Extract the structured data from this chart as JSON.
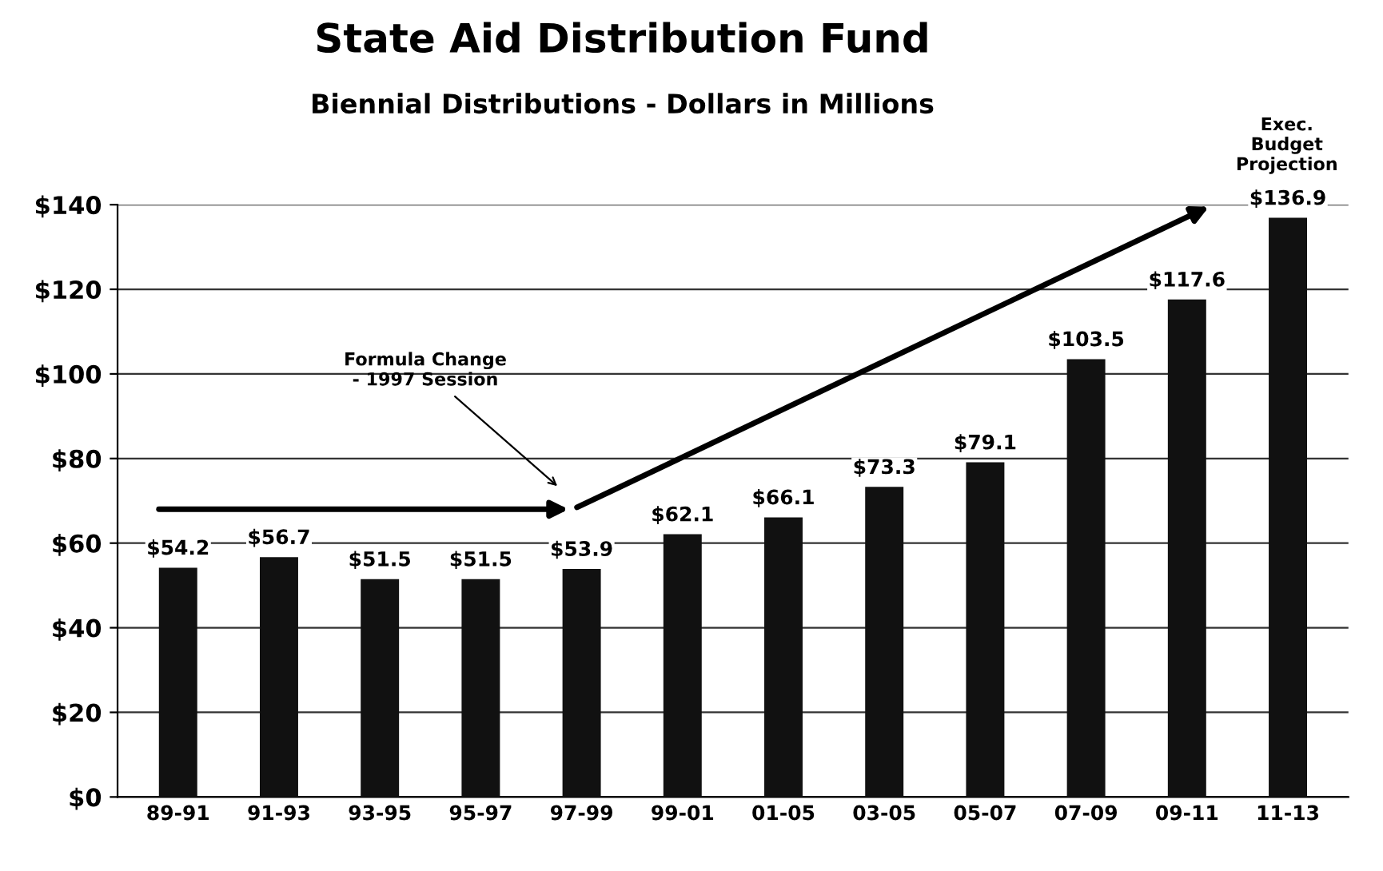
{
  "chart_data": {
    "type": "bar",
    "title": "State Aid Distribution Fund",
    "subtitle": "Biennial Distributions - Dollars in Millions",
    "categories": [
      "89-91",
      "91-93",
      "93-95",
      "95-97",
      "97-99",
      "99-01",
      "01-05",
      "03-05",
      "05-07",
      "07-09",
      "09-11",
      "11-13"
    ],
    "values": [
      54.2,
      56.7,
      51.5,
      51.5,
      53.9,
      62.1,
      66.1,
      73.3,
      79.1,
      103.5,
      117.6,
      136.9
    ],
    "value_labels": [
      "$54.2",
      "$56.7",
      "$51.5",
      "$51.5",
      "$53.9",
      "$62.1",
      "$66.1",
      "$73.3",
      "$79.1",
      "$103.5",
      "$117.6",
      "$136.9"
    ],
    "color": "#111111",
    "ylim": [
      0,
      140
    ],
    "yticks": [
      {
        "value": 0,
        "label": "$0"
      },
      {
        "value": 20,
        "label": "$20"
      },
      {
        "value": 40,
        "label": "$40"
      },
      {
        "value": 60,
        "label": "$60"
      },
      {
        "value": 80,
        "label": "$80"
      },
      {
        "value": 100,
        "label": "$100"
      },
      {
        "value": 120,
        "label": "$120"
      },
      {
        "value": 140,
        "label": "$140"
      }
    ],
    "grid": "y",
    "annotations": [
      "Formula Change\n- 1997 Session",
      "Exec.\nBudget\nProjection"
    ]
  }
}
